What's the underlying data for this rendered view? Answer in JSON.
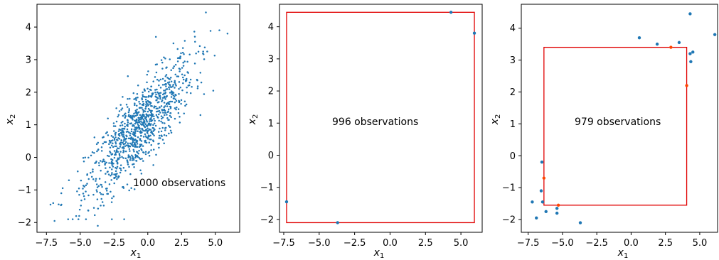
{
  "chart_data": [
    {
      "type": "scatter",
      "title": "",
      "xlabel": "x1",
      "ylabel": "x2",
      "xlim": [
        -8.2,
        6.8
      ],
      "ylim": [
        -2.3,
        4.7
      ],
      "xticks": [
        "−7.5",
        "−5.0",
        "−2.5",
        "0.0",
        "2.5",
        "5.0"
      ],
      "yticks": [
        "−2",
        "−1",
        "0",
        "1",
        "2",
        "3",
        "4"
      ],
      "annotation": "1000 observations",
      "series": [
        {
          "color": "#1f77b4",
          "n_points": 1000,
          "distribution": "bivariate-normal",
          "mean": [
            -0.6,
            0.9
          ],
          "std": [
            2.0,
            1.05
          ],
          "correlation": 0.82,
          "points": [
            [
              -7.2,
              -1.45
            ],
            [
              -6.9,
              -1.95
            ],
            [
              -3.7,
              -2.1
            ],
            [
              4.3,
              4.45
            ],
            [
              5.9,
              3.8
            ],
            [
              4.4,
              3.25
            ],
            [
              4.1,
              3.25
            ],
            [
              -6.4,
              -1.1
            ],
            [
              -5.3,
              -1.8
            ],
            [
              0.6,
              3.7
            ],
            [
              3.5,
              3.55
            ],
            [
              1.9,
              3.5
            ]
          ]
        }
      ]
    },
    {
      "type": "scatter",
      "title": "",
      "xlabel": "x1",
      "ylabel": "x2",
      "xlim": [
        -7.8,
        6.5
      ],
      "ylim": [
        -2.4,
        4.7
      ],
      "xticks": [
        "−7.5",
        "−5.0",
        "−2.5",
        "0.0",
        "2.5",
        "5.0"
      ],
      "yticks": [
        "−2",
        "−1",
        "0",
        "1",
        "2",
        "3",
        "4"
      ],
      "annotation": "996 observations",
      "box": {
        "x": [
          -7.3,
          5.95
        ],
        "y": [
          -2.1,
          4.45
        ],
        "color": "#e00000"
      },
      "series": [
        {
          "color": "#1f77b4",
          "points": [
            [
              4.3,
              4.45
            ],
            [
              5.95,
              3.8
            ],
            [
              -7.3,
              -1.45
            ],
            [
              -3.7,
              -2.1
            ]
          ]
        }
      ]
    },
    {
      "type": "scatter",
      "title": "",
      "xlabel": "x1",
      "ylabel": "x2",
      "xlim": [
        -8.0,
        6.3
      ],
      "ylim": [
        -2.4,
        4.75
      ],
      "xticks": [
        "−7.5",
        "−5.0",
        "−2.5",
        "0.0",
        "2.5",
        "5.0"
      ],
      "yticks": [
        "−2",
        "−1",
        "0",
        "1",
        "2",
        "3",
        "4"
      ],
      "annotation": "979 observations",
      "box": {
        "x": [
          -6.35,
          4.05
        ],
        "y": [
          -1.55,
          3.4
        ],
        "color": "#e00000"
      },
      "series": [
        {
          "color": "#1f77b4",
          "points": [
            [
              -7.2,
              -1.45
            ],
            [
              -6.9,
              -1.95
            ],
            [
              -6.55,
              -1.1
            ],
            [
              -6.5,
              -0.2
            ],
            [
              -6.45,
              -1.45
            ],
            [
              -6.2,
              -1.75
            ],
            [
              -5.4,
              -1.8
            ],
            [
              -5.4,
              -1.65
            ],
            [
              -3.7,
              -2.1
            ],
            [
              0.6,
              3.7
            ],
            [
              1.9,
              3.5
            ],
            [
              3.5,
              3.55
            ],
            [
              4.3,
              4.45
            ],
            [
              4.3,
              3.2
            ],
            [
              4.35,
              2.95
            ],
            [
              4.5,
              3.25
            ],
            [
              6.1,
              3.8
            ]
          ]
        },
        {
          "color": "#ff4500",
          "points": [
            [
              -6.35,
              -0.7
            ],
            [
              -5.3,
              -1.55
            ],
            [
              2.9,
              3.4
            ],
            [
              4.05,
              2.2
            ]
          ]
        }
      ]
    }
  ]
}
